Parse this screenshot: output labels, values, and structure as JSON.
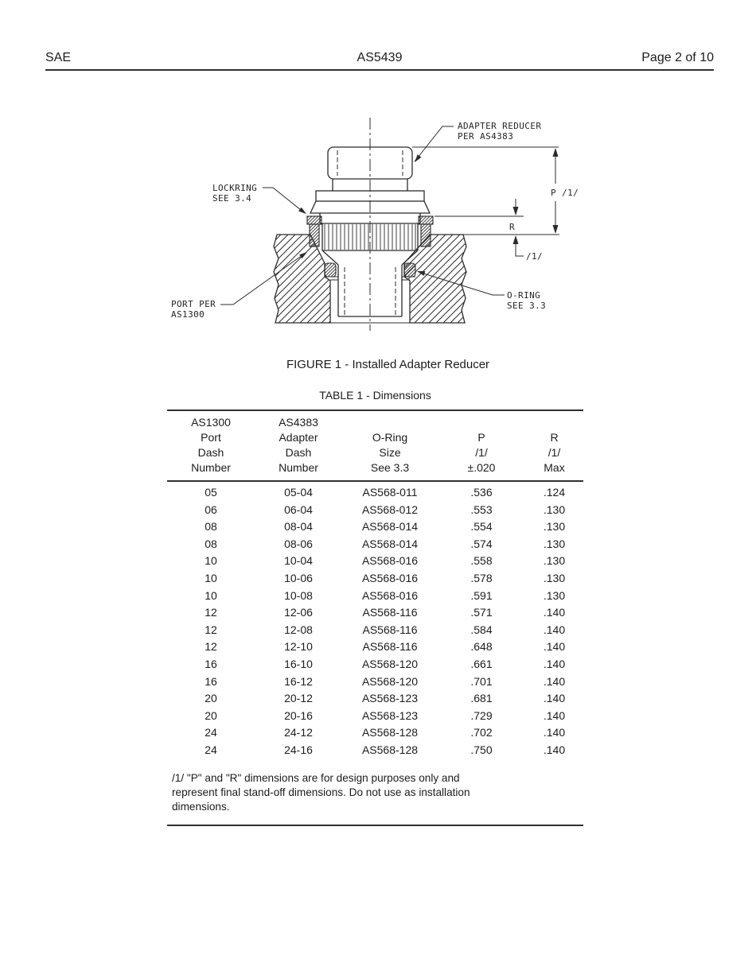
{
  "page_header": {
    "left": "SAE",
    "center": "AS5439",
    "right": "Page 2 of 10"
  },
  "figure": {
    "caption": "FIGURE 1 - Installed Adapter Reducer",
    "labels": {
      "adapter_reducer": "ADAPTER REDUCER\nPER AS4383",
      "lockring": "LOCKRING\nSEE 3.4",
      "port": "PORT PER\nAS1300",
      "oring": "O-RING\nSEE 3.3"
    },
    "dims": {
      "p": "P /1/",
      "r": "R",
      "note": "/1/"
    }
  },
  "table": {
    "caption": "TABLE 1 - Dimensions",
    "header": [
      "AS1300\nPort\nDash\nNumber",
      "AS4383\nAdapter\nDash\nNumber",
      "O-Ring\nSize\nSee 3.3",
      "P\n/1/\n±.020",
      "R\n/1/\nMax"
    ],
    "rows": [
      [
        "05",
        "05-04",
        "AS568-011",
        ".536",
        ".124"
      ],
      [
        "06",
        "06-04",
        "AS568-012",
        ".553",
        ".130"
      ],
      [
        "08",
        "08-04",
        "AS568-014",
        ".554",
        ".130"
      ],
      [
        "08",
        "08-06",
        "AS568-014",
        ".574",
        ".130"
      ],
      [
        "10",
        "10-04",
        "AS568-016",
        ".558",
        ".130"
      ],
      [
        "10",
        "10-06",
        "AS568-016",
        ".578",
        ".130"
      ],
      [
        "10",
        "10-08",
        "AS568-016",
        ".591",
        ".130"
      ],
      [
        "12",
        "12-06",
        "AS568-116",
        ".571",
        ".140"
      ],
      [
        "12",
        "12-08",
        "AS568-116",
        ".584",
        ".140"
      ],
      [
        "12",
        "12-10",
        "AS568-116",
        ".648",
        ".140"
      ],
      [
        "16",
        "16-10",
        "AS568-120",
        ".661",
        ".140"
      ],
      [
        "16",
        "16-12",
        "AS568-120",
        ".701",
        ".140"
      ],
      [
        "20",
        "20-12",
        "AS568-123",
        ".681",
        ".140"
      ],
      [
        "20",
        "20-16",
        "AS568-123",
        ".729",
        ".140"
      ],
      [
        "24",
        "24-12",
        "AS568-128",
        ".702",
        ".140"
      ],
      [
        "24",
        "24-16",
        "AS568-128",
        ".750",
        ".140"
      ]
    ],
    "footnote": "/1/ \"P\" and \"R\" dimensions are for design purposes only and\nrepresent final stand-off dimensions.  Do not use as installation\ndimensions."
  }
}
